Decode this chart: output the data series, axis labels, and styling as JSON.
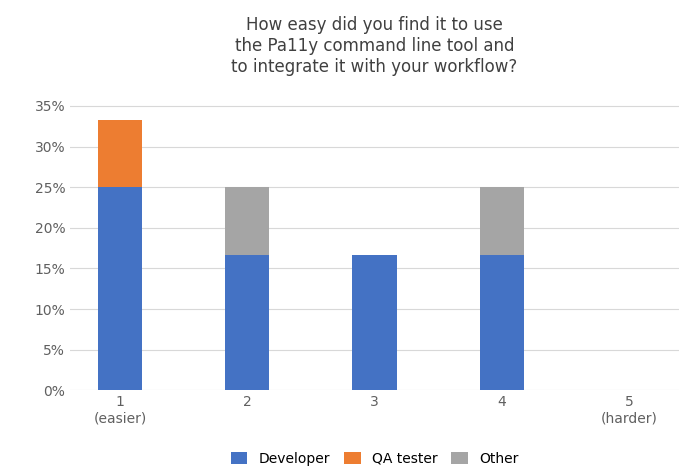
{
  "categories": [
    "1\n(easier)",
    "2",
    "3",
    "4",
    "5\n(harder)"
  ],
  "developer": [
    0.25,
    0.1667,
    0.1667,
    0.1667,
    0.0
  ],
  "qa_tester": [
    0.0833,
    0.0,
    0.0,
    0.0,
    0.0
  ],
  "other": [
    0.0,
    0.0833,
    0.0,
    0.0833,
    0.0
  ],
  "developer_color": "#4472C4",
  "qa_tester_color": "#ED7D31",
  "other_color": "#A5A5A5",
  "title": "How easy did you find it to use\nthe Pa11y command line tool and\nto integrate it with your workflow?",
  "ylim": [
    0,
    0.375
  ],
  "yticks": [
    0.0,
    0.05,
    0.1,
    0.15,
    0.2,
    0.25,
    0.3,
    0.35
  ],
  "ytick_labels": [
    "0%",
    "5%",
    "10%",
    "15%",
    "20%",
    "25%",
    "30%",
    "35%"
  ],
  "legend_labels": [
    "Developer",
    "QA tester",
    "Other"
  ],
  "bar_width": 0.35,
  "background_color": "#FFFFFF",
  "title_fontsize": 12,
  "tick_fontsize": 10,
  "legend_fontsize": 10,
  "grid_color": "#D8D8D8",
  "title_color": "#404040"
}
